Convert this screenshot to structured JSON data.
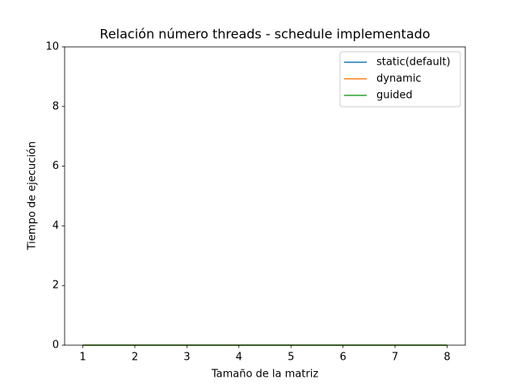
{
  "chart_data": {
    "type": "line",
    "title": "Relación número threads - schedule implementado",
    "x_label": "Tamaño de la matriz",
    "y_label": "Tiempo de ejecución",
    "x": [
      1,
      2,
      3,
      4,
      5,
      6,
      7,
      8
    ],
    "series": [
      {
        "name": "static(default)",
        "color": "#1f77b4",
        "values": [
          0,
          0,
          0,
          0,
          0,
          0,
          0,
          0
        ]
      },
      {
        "name": "dynamic",
        "color": "#ff7f0e",
        "values": [
          0,
          0,
          0,
          0,
          0,
          0,
          0,
          0
        ]
      },
      {
        "name": "guided",
        "color": "#2ca02c",
        "values": [
          0,
          0,
          0,
          0,
          0,
          0,
          0,
          0
        ]
      }
    ],
    "xlim": [
      0.65,
      8.35
    ],
    "xticks": [
      1,
      2,
      3,
      4,
      5,
      6,
      7,
      8
    ],
    "ylim": [
      0,
      10
    ],
    "yticks": [
      0,
      2,
      4,
      6,
      8,
      10
    ],
    "legend": "upper right"
  }
}
